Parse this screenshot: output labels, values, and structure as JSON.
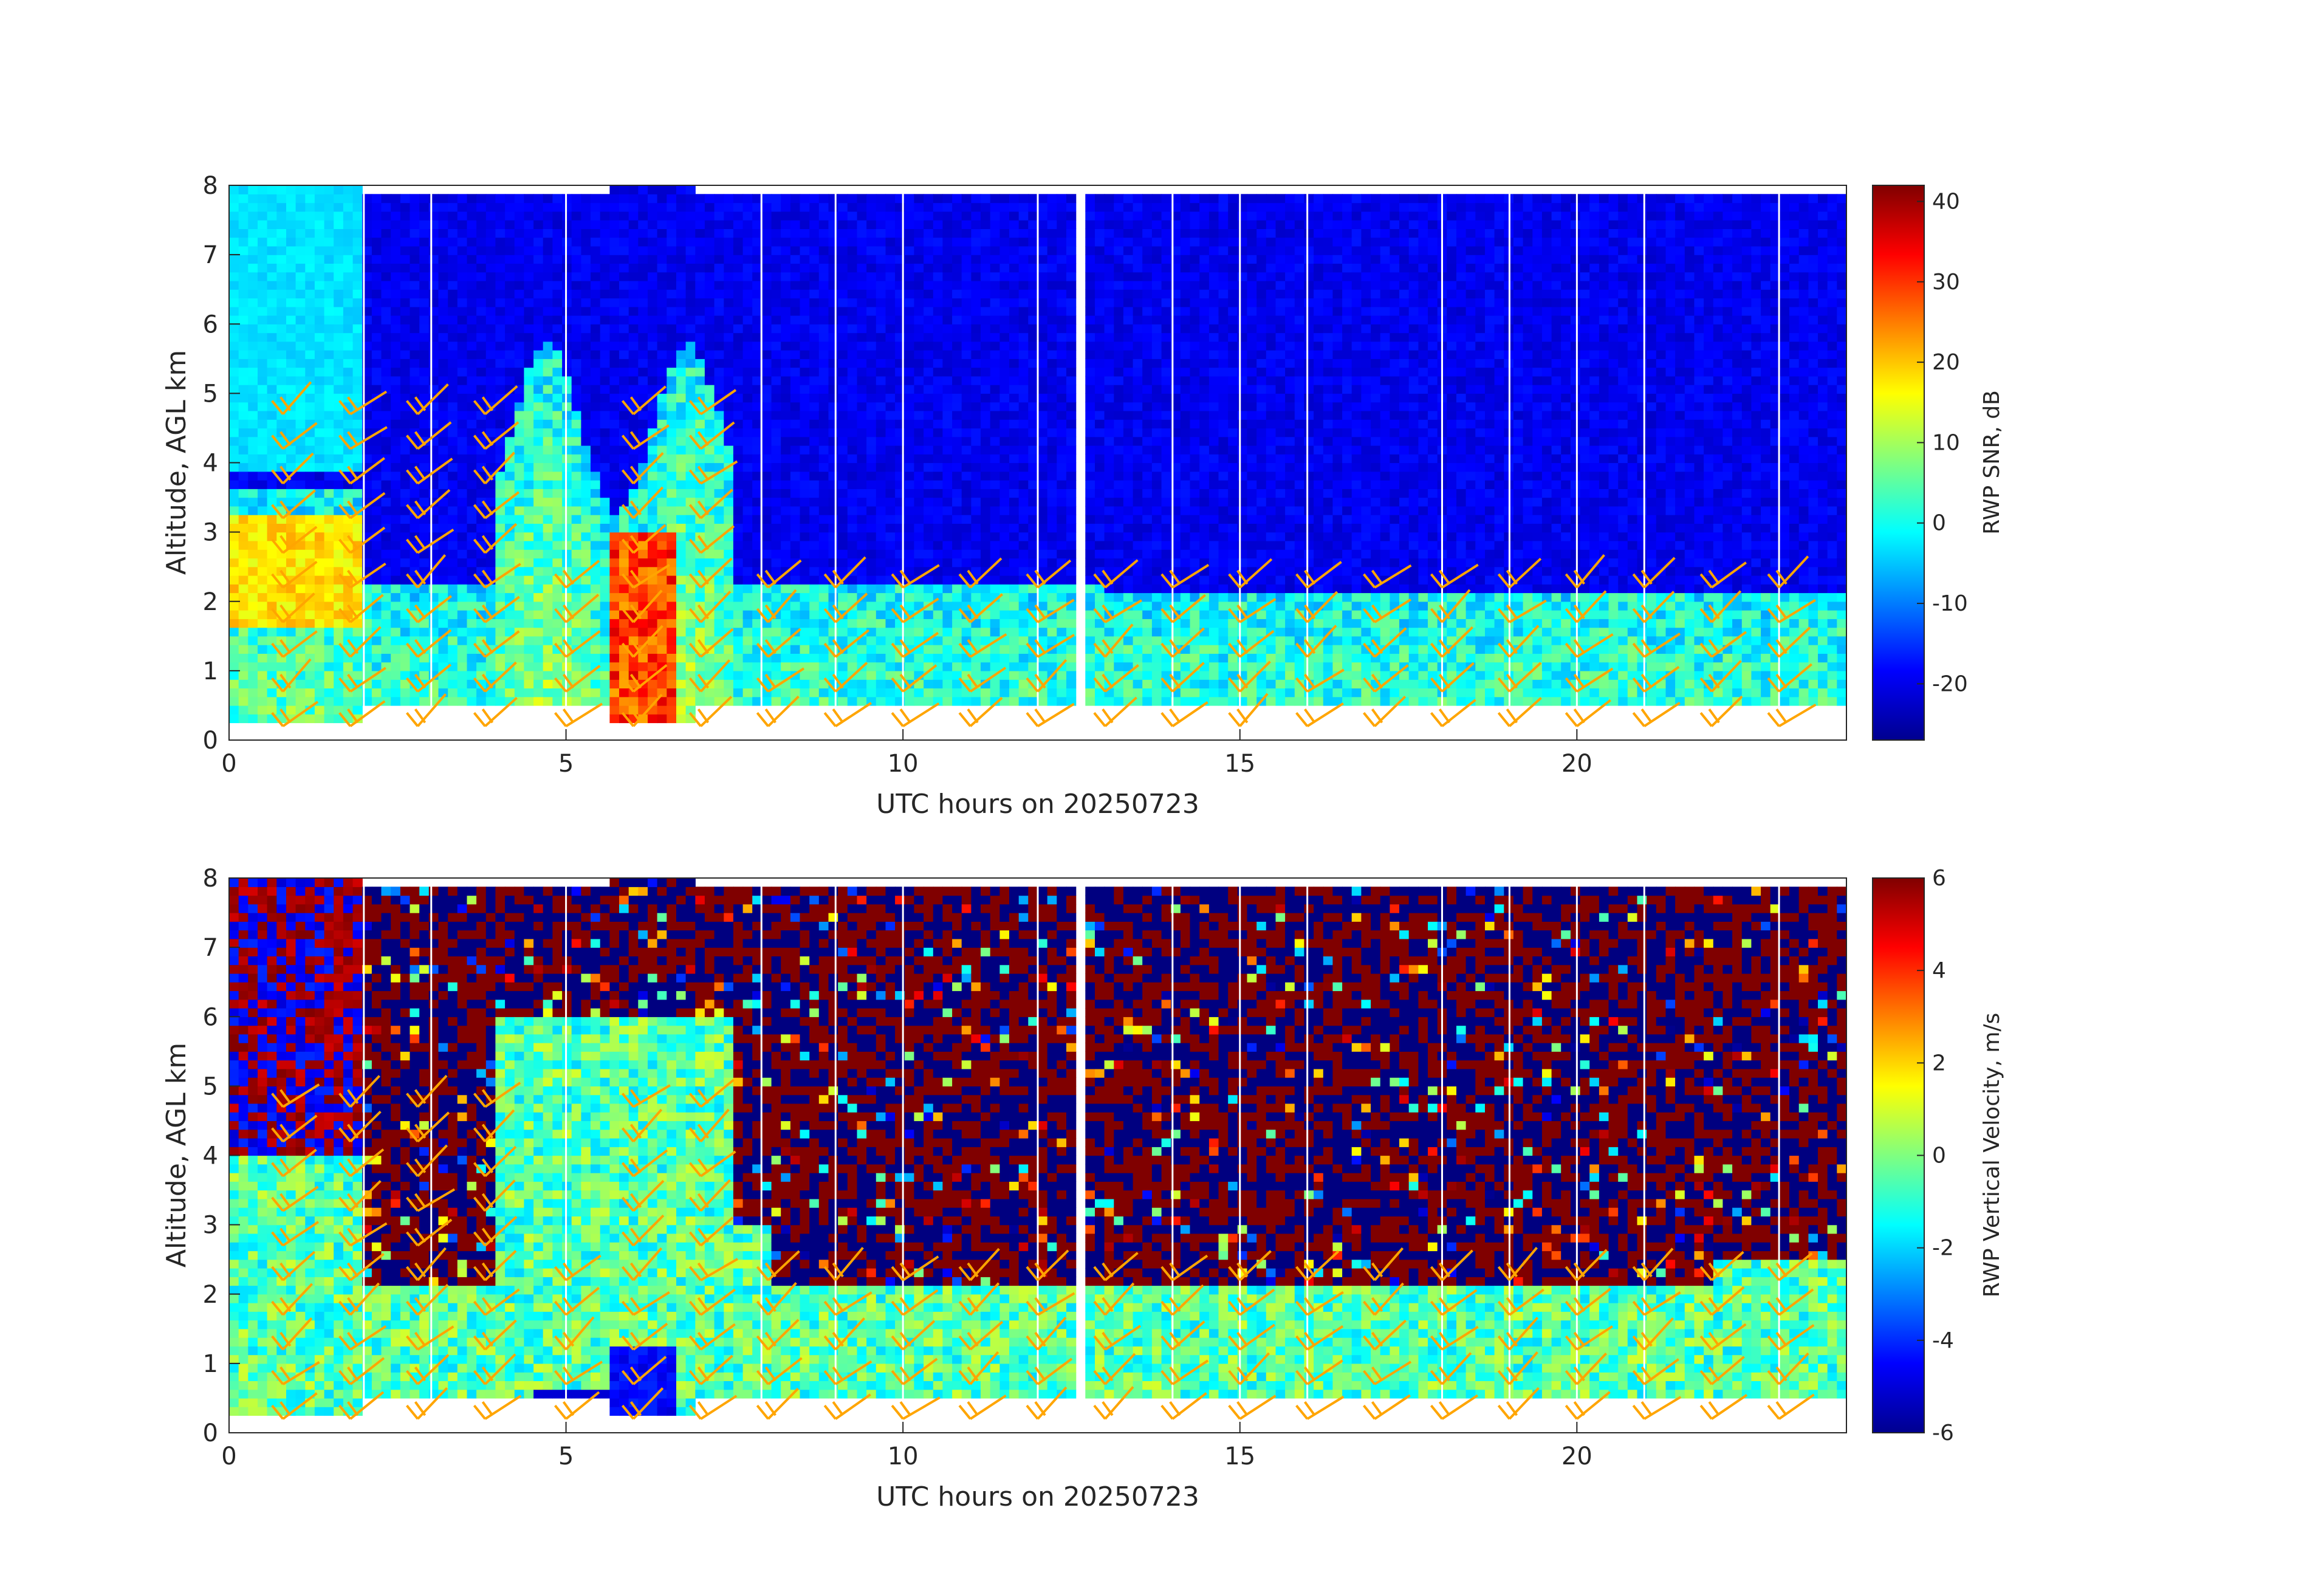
{
  "chart_data": [
    {
      "type": "heatmap",
      "title": "",
      "xlabel": "UTC hours on 20250723",
      "ylabel": "Altitude, AGL km",
      "xlim": [
        0,
        24
      ],
      "ylim": [
        0,
        8
      ],
      "xticks": [
        "0",
        "5",
        "10",
        "15",
        "20"
      ],
      "yticks": [
        "0",
        "1",
        "2",
        "3",
        "4",
        "5",
        "6",
        "7",
        "8"
      ],
      "colorbar": {
        "label": "RWP SNR, dB",
        "range": [
          -27,
          42
        ],
        "ticks": [
          "-20",
          "-10",
          "0",
          "10",
          "20",
          "30",
          "40"
        ],
        "colormap": "jet"
      },
      "overlay": "wind barbs (orange)",
      "barb_color": "#ffa500",
      "field": "snr"
    },
    {
      "type": "heatmap",
      "title": "",
      "xlabel": "UTC hours on 20250723",
      "ylabel": "Altitude, AGL km",
      "xlim": [
        0,
        24
      ],
      "ylim": [
        0,
        8
      ],
      "xticks": [
        "0",
        "5",
        "10",
        "15",
        "20"
      ],
      "yticks": [
        "0",
        "1",
        "2",
        "3",
        "4",
        "5",
        "6",
        "7",
        "8"
      ],
      "colorbar": {
        "label": "RWP Vertical Velocity, m/s",
        "range": [
          -6,
          6
        ],
        "ticks": [
          "-6",
          "-4",
          "-2",
          "0",
          "2",
          "4",
          "6"
        ],
        "colormap": "jet"
      },
      "overlay": "wind barbs (orange)",
      "barb_color": "#ffa500",
      "field": "vv"
    }
  ]
}
